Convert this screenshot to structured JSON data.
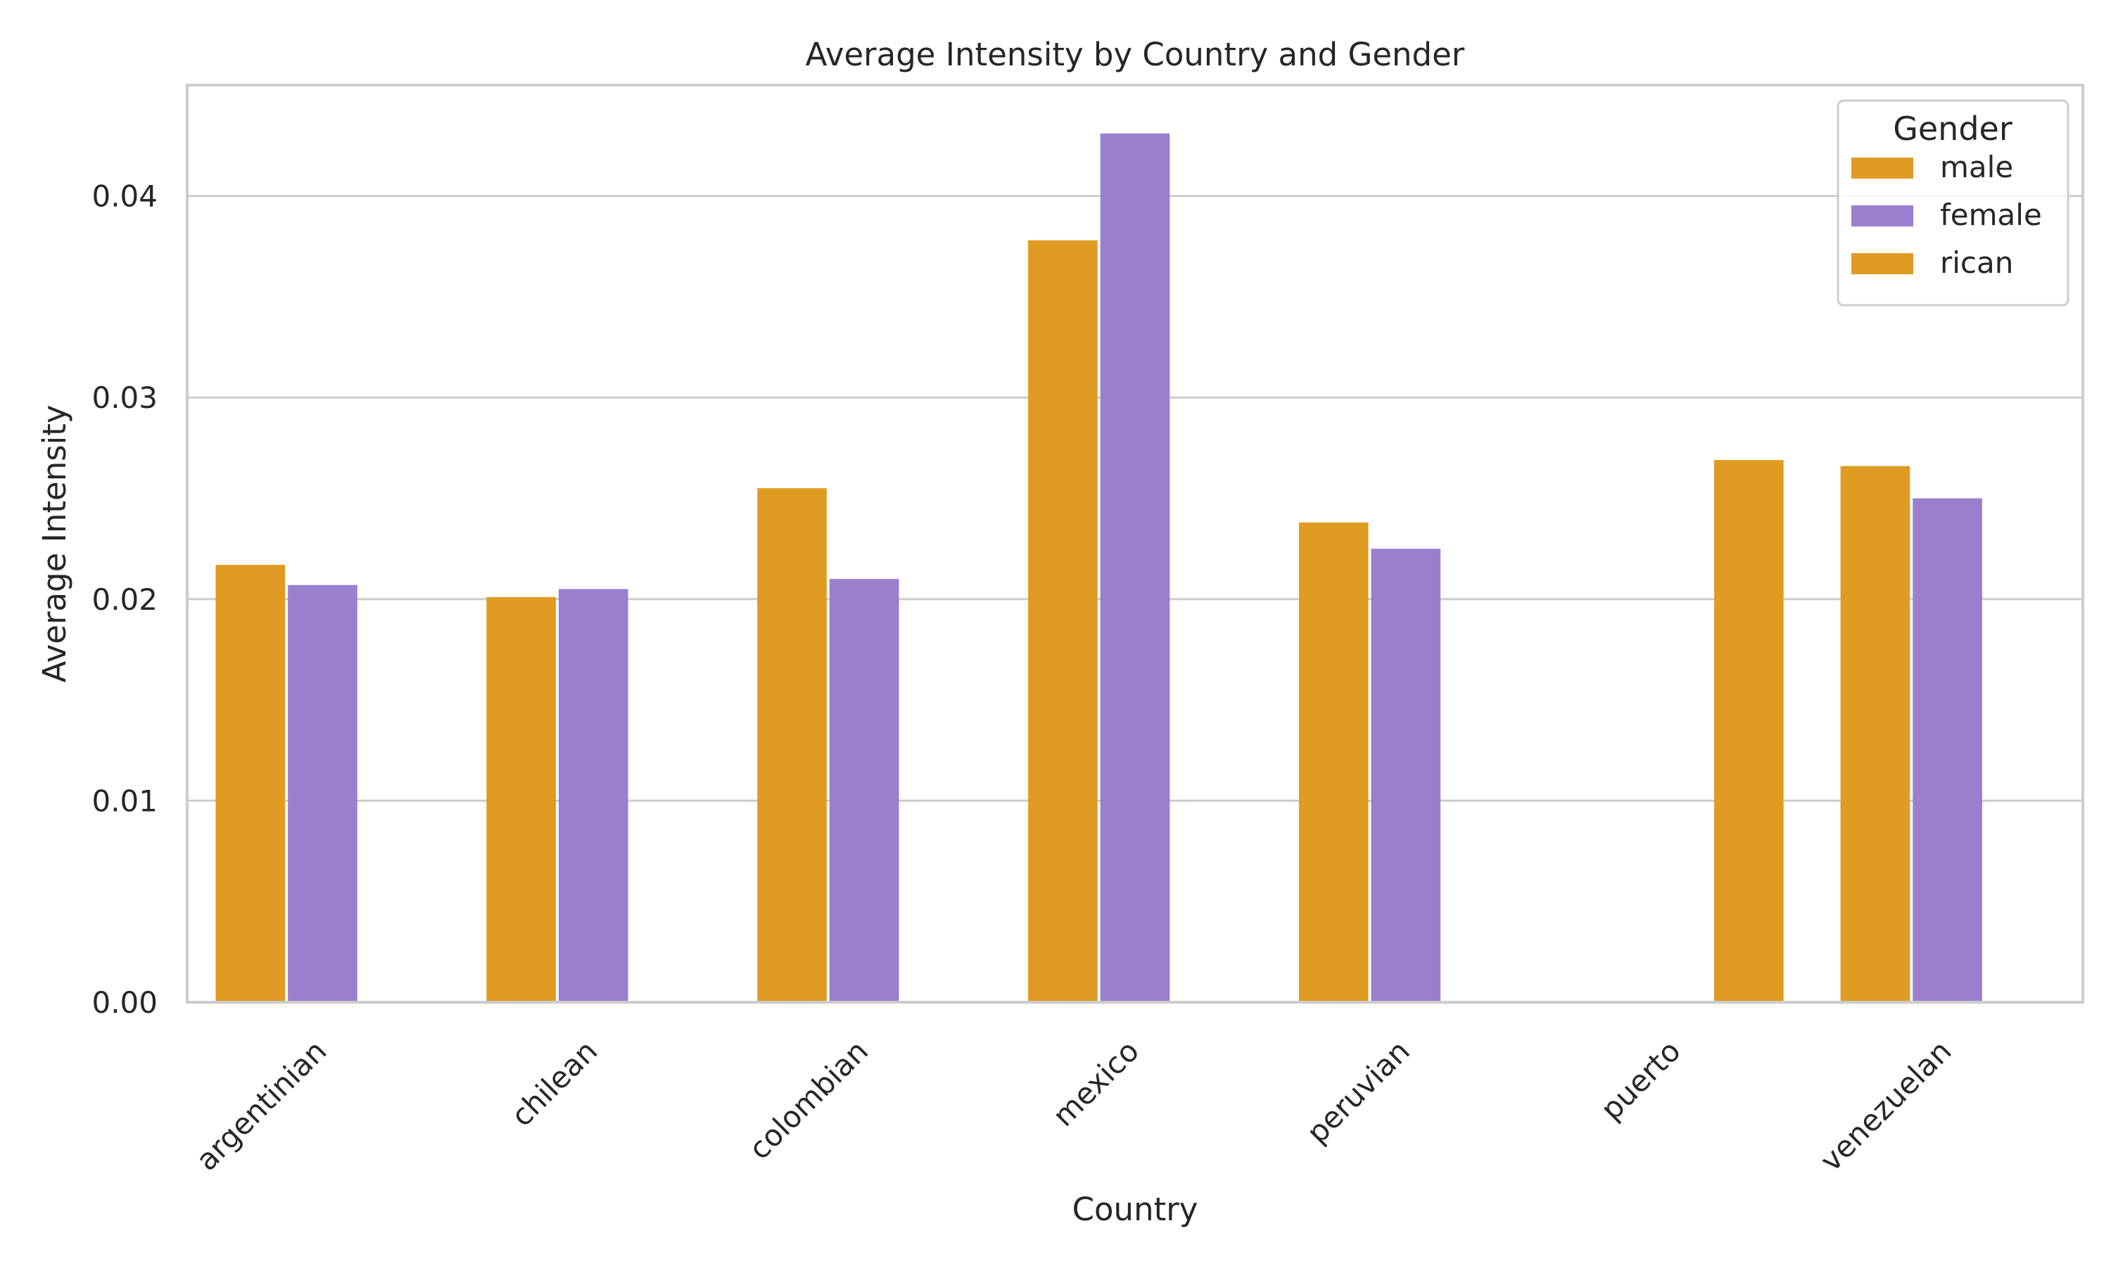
{
  "chart_data": {
    "type": "bar",
    "title": "Average Intensity by Country and Gender",
    "xlabel": "Country",
    "ylabel": "Average Intensity",
    "categories": [
      "argentinian",
      "chilean",
      "colombian",
      "mexico",
      "peruvian",
      "puerto",
      "venezuelan"
    ],
    "series": [
      {
        "name": "male",
        "color": "#E09B23",
        "values": [
          0.0217,
          0.0201,
          0.0255,
          0.0378,
          0.0238,
          null,
          0.0266
        ]
      },
      {
        "name": "female",
        "color": "#9A7FCF",
        "values": [
          0.0207,
          0.0205,
          0.021,
          0.0431,
          0.0225,
          null,
          0.025
        ]
      },
      {
        "name": "rican",
        "color": "#E09B23",
        "values": [
          null,
          null,
          null,
          null,
          null,
          0.0269,
          null
        ]
      }
    ],
    "ylim": [
      0,
      0.0455
    ],
    "yticks": [
      "0.00",
      "0.01",
      "0.02",
      "0.03",
      "0.04"
    ],
    "ytick_values": [
      0,
      0.01,
      0.02,
      0.03,
      0.04
    ],
    "legend": {
      "title": "Gender",
      "position": "top-right"
    },
    "grid": "y"
  }
}
